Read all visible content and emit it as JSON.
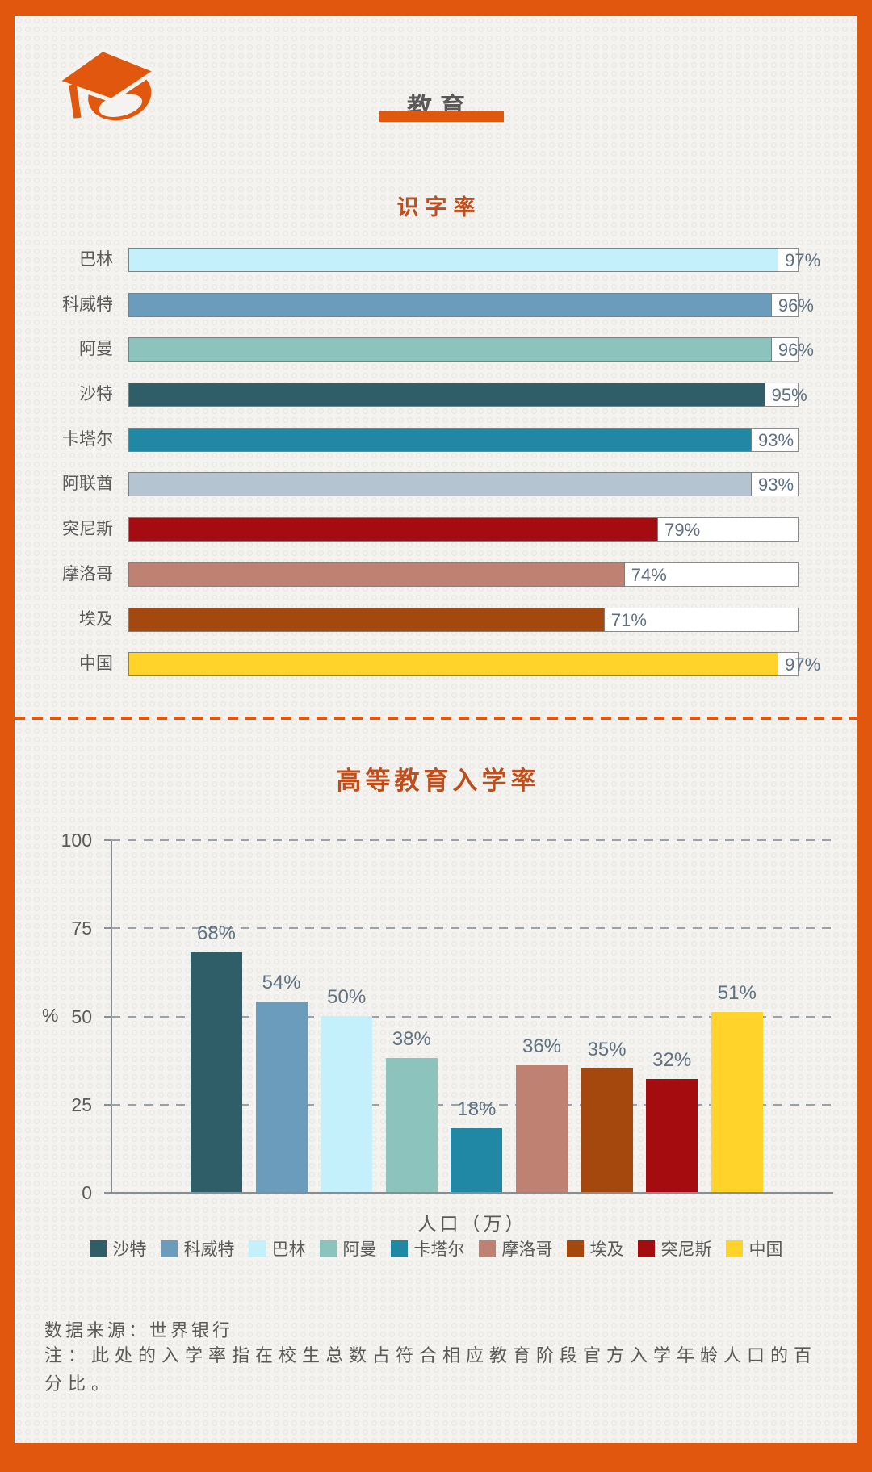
{
  "header": {
    "title": "教育"
  },
  "colors": {
    "brand_orange": "#E2570E",
    "heading_orange": "#BE4F1D",
    "text_gray": "#595959",
    "value_gray": "#5F7080"
  },
  "chart_data": [
    {
      "type": "bar",
      "orientation": "horizontal",
      "title": "识字率",
      "unit": "%",
      "xlim": [
        0,
        100
      ],
      "grid": false,
      "categories": [
        "巴林",
        "科威特",
        "阿曼",
        "沙特",
        "卡塔尔",
        "阿联酋",
        "突尼斯",
        "摩洛哥",
        "埃及",
        "中国"
      ],
      "values": [
        97,
        96,
        96,
        95,
        93,
        93,
        79,
        74,
        71,
        97
      ],
      "value_labels": [
        "97%",
        "96%",
        "96%",
        "95%",
        "93%",
        "93%",
        "79%",
        "74%",
        "71%",
        "97%"
      ],
      "bar_colors": [
        "#C3F0FA",
        "#6B9CBC",
        "#8CC4BD",
        "#2F5D68",
        "#2088A4",
        "#B4C5D1",
        "#A50C10",
        "#BE8172",
        "#A4480D",
        "#FFD32A"
      ]
    },
    {
      "type": "bar",
      "orientation": "vertical",
      "title": "高等教育入学率",
      "xlabel": "人口（万）",
      "ylabel": "%",
      "ylim": [
        0,
        100
      ],
      "yticks": [
        100,
        75,
        50,
        25,
        0
      ],
      "grid": "dashed",
      "legend_position": "bottom",
      "categories": [
        "沙特",
        "科威特",
        "巴林",
        "阿曼",
        "卡塔尔",
        "摩洛哥",
        "埃及",
        "突尼斯",
        "中国"
      ],
      "values": [
        68,
        54,
        50,
        38,
        18,
        36,
        35,
        32,
        51
      ],
      "value_labels": [
        "68%",
        "54%",
        "50%",
        "38%",
        "18%",
        "36%",
        "35%",
        "32%",
        "51%"
      ],
      "bar_colors": [
        "#2F5D68",
        "#6B9CBC",
        "#C3F0FA",
        "#8CC4BD",
        "#2088A4",
        "#BE8172",
        "#A4480D",
        "#A50C10",
        "#FFD32A"
      ]
    }
  ],
  "footer": {
    "source": "数据来源：世界银行",
    "note": "注：此处的入学率指在校生总数占符合相应教育阶段官方入学年龄人口的百分比。"
  }
}
